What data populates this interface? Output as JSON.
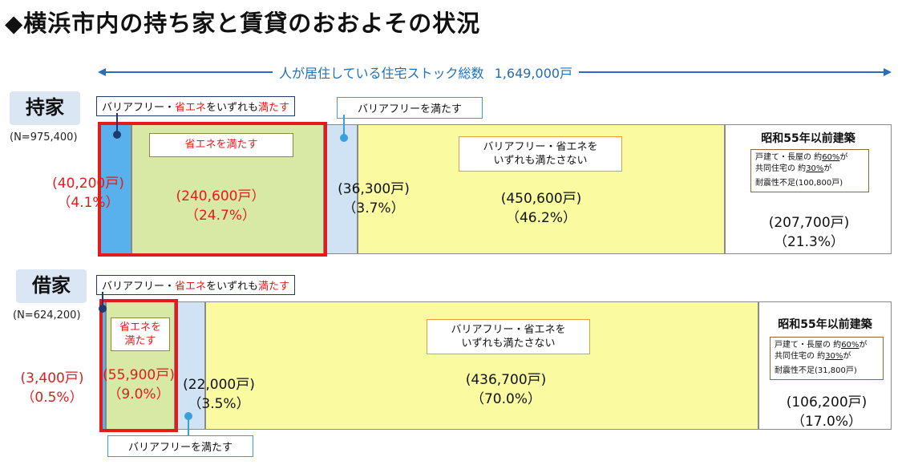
{
  "title": "◆横浜市内の持ち家と賃貸のおおよその状況",
  "total": {
    "label": "人が居住している住宅ストック総数",
    "value": "1,649,000戸"
  },
  "owned": {
    "label": "持家",
    "n": "(N=975,400)",
    "both_label_prefix": "バリアフリー・",
    "both_label_red1": "省エネ",
    "both_label_mid": "をいずれも",
    "both_label_red2": "満たす",
    "bf_label": "バリアフリーを満たす",
    "eco_label": "省エネを満たす",
    "none_label_1": "バリアフリー・省エネを",
    "none_label_2": "いずれも満たさない",
    "old_title": "昭和55年以前建築",
    "old_note_1_a": "戸建て・長屋の 約",
    "old_note_1_b": "60%",
    "old_note_1_c": "が",
    "old_note_2_a": "共同住宅の 約",
    "old_note_2_b": "30%",
    "old_note_2_c": "が",
    "old_note_3": "耐震性不足(100,800戸)",
    "both": {
      "count": "(40,200戸)",
      "pct": "（4.1%）"
    },
    "eco": {
      "count": "(240,600戸）",
      "pct": "（24.7%）"
    },
    "bf": {
      "count": "(36,300戸)",
      "pct": "（3.7%）"
    },
    "none": {
      "count": "(450,600戸)",
      "pct": "（46.2%）"
    },
    "old": {
      "count": "(207,700戸)",
      "pct": "（21.3%）"
    }
  },
  "rented": {
    "label": "借家",
    "n": "(N=624,200)",
    "both_label_prefix": "バリアフリー・",
    "both_label_red1": "省エネ",
    "both_label_mid": "をいずれも",
    "both_label_red2": "満たす",
    "bf_label": "バリアフリーを満たす",
    "eco_label_1": "省エネを",
    "eco_label_2": "満たす",
    "none_label_1": "バリアフリー・省エネを",
    "none_label_2": "いずれも満たさない",
    "old_title": "昭和55年以前建築",
    "old_note_1_a": "戸建て・長屋の 約",
    "old_note_1_b": "60%",
    "old_note_1_c": "が",
    "old_note_2_a": "共同住宅の 約",
    "old_note_2_b": "30%",
    "old_note_2_c": "が",
    "old_note_3": "耐震性不足(31,800戸)",
    "both": {
      "count": "(3,400戸)",
      "pct": "（0.5%）"
    },
    "eco": {
      "count": "(55,900戸)",
      "pct": "（9.0%）"
    },
    "bf": {
      "count": "(22,000戸)",
      "pct": "（3.5%）"
    },
    "none": {
      "count": "(436,700戸)",
      "pct": "（70.0%）"
    },
    "old": {
      "count": "(106,200戸)",
      "pct": "（17.0%）"
    }
  },
  "colors": {
    "both": "#58b0ec",
    "eco": "#d8e9a6",
    "bf": "#cfe3f4",
    "none": "#fafaa0",
    "old": "#ffffff",
    "highlight": "#e41b1b",
    "accent": "#1f6fb7"
  }
}
